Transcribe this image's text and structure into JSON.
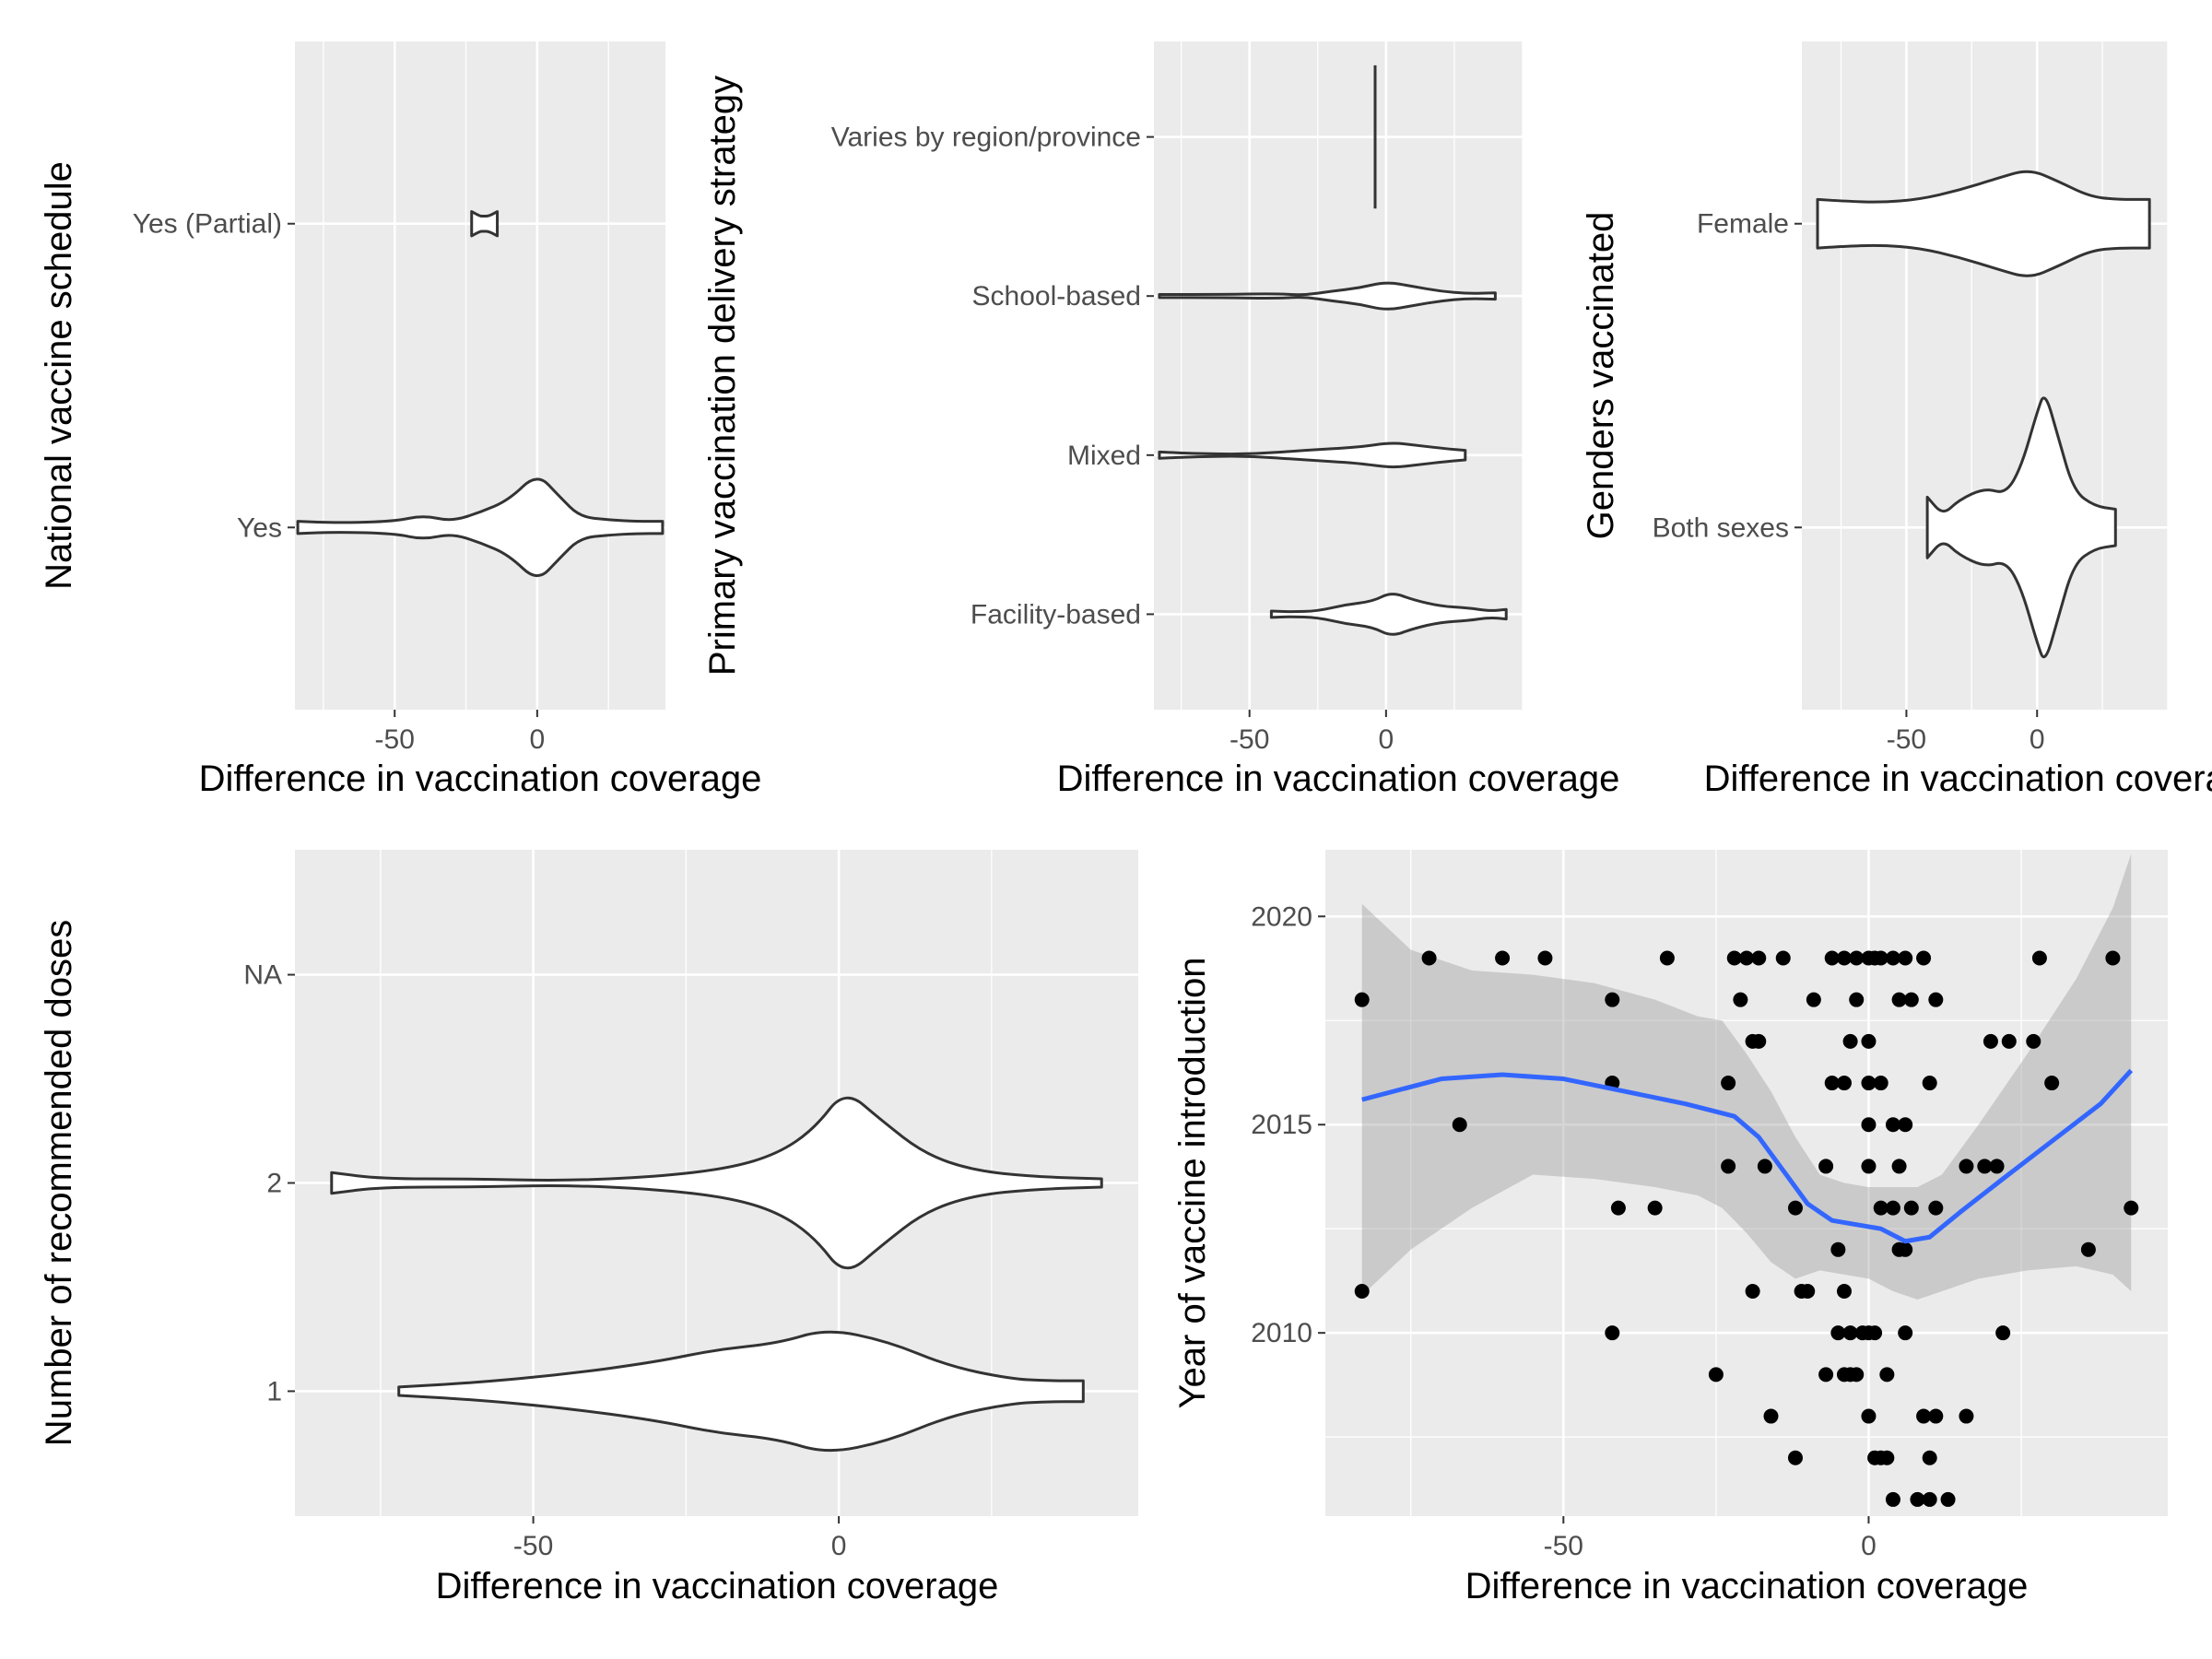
{
  "colors": {
    "panel": "#ebebeb",
    "grid_major": "#ffffff",
    "violin_fill": "#ffffff",
    "violin_line": "#333333",
    "point": "#000000",
    "smooth_line": "#3366ff",
    "ribbon": "#999999"
  },
  "chart_data": [
    {
      "type": "violin",
      "xlabel": "Difference in vaccination coverage",
      "ylabel": "National vaccine schedule",
      "xlim": [
        -85,
        45
      ],
      "x_ticks": [
        -50,
        0
      ],
      "categories": [
        "Yes",
        "Yes (Partial)"
      ],
      "violins": [
        {
          "category": "Yes",
          "min": -84,
          "max": 44,
          "max_half_width": 0.18,
          "profile": [
            [
              -84,
              0.02
            ],
            [
              -70,
              0.015
            ],
            [
              -50,
              0.02
            ],
            [
              -40,
              0.04
            ],
            [
              -30,
              0.02
            ],
            [
              -20,
              0.05
            ],
            [
              -10,
              0.09
            ],
            [
              0,
              0.18
            ],
            [
              8,
              0.1
            ],
            [
              15,
              0.035
            ],
            [
              25,
              0.025
            ],
            [
              35,
              0.02
            ],
            [
              44,
              0.02
            ]
          ]
        },
        {
          "category": "Yes (Partial)",
          "min": -23,
          "max": -14,
          "max_half_width": 0.04,
          "profile": [
            [
              -23,
              0.04
            ],
            [
              -20,
              0.025
            ],
            [
              -19,
              0.025
            ],
            [
              -17,
              0.025
            ],
            [
              -14,
              0.04
            ]
          ]
        }
      ]
    },
    {
      "type": "violin",
      "xlabel": "Difference in vaccination coverage",
      "ylabel": "Primary vaccination delivery strategy",
      "xlim": [
        -85,
        50
      ],
      "x_ticks": [
        -50,
        0
      ],
      "categories": [
        "Facility-based",
        "Mixed",
        "School-based",
        "Varies by region/province"
      ],
      "violins": [
        {
          "category": "Facility-based",
          "min": -42,
          "max": 44,
          "max_half_width": 0.14,
          "profile": [
            [
              -42,
              0.02
            ],
            [
              -35,
              0.015
            ],
            [
              -25,
              0.02
            ],
            [
              -15,
              0.06
            ],
            [
              -5,
              0.08
            ],
            [
              2,
              0.14
            ],
            [
              10,
              0.09
            ],
            [
              20,
              0.05
            ],
            [
              30,
              0.04
            ],
            [
              38,
              0.02
            ],
            [
              44,
              0.03
            ]
          ]
        },
        {
          "category": "Mixed",
          "min": -83,
          "max": 29,
          "max_half_width": 0.08,
          "profile": [
            [
              -83,
              0.02
            ],
            [
              -70,
              0.01
            ],
            [
              -50,
              0.005
            ],
            [
              -30,
              0.03
            ],
            [
              -10,
              0.05
            ],
            [
              2,
              0.08
            ],
            [
              12,
              0.06
            ],
            [
              22,
              0.04
            ],
            [
              29,
              0.03
            ]
          ]
        },
        {
          "category": "School-based",
          "min": -83,
          "max": 40,
          "max_half_width": 0.09,
          "profile": [
            [
              -83,
              0.01
            ],
            [
              -60,
              0.01
            ],
            [
              -40,
              0.015
            ],
            [
              -30,
              0.005
            ],
            [
              -20,
              0.03
            ],
            [
              -10,
              0.05
            ],
            [
              0,
              0.09
            ],
            [
              10,
              0.06
            ],
            [
              20,
              0.03
            ],
            [
              30,
              0.015
            ],
            [
              40,
              0.02
            ]
          ]
        },
        {
          "category": "Varies by region/province",
          "min": -4,
          "max": -4,
          "max_half_width": 0.45,
          "profile": []
        }
      ]
    },
    {
      "type": "violin",
      "xlabel": "Difference in vaccination coverage",
      "ylabel": "Genders vaccinated",
      "xlim": [
        -90,
        50
      ],
      "x_ticks": [
        -50,
        0
      ],
      "categories": [
        "Both sexes",
        "Female"
      ],
      "violins": [
        {
          "category": "Both sexes",
          "min": -42,
          "max": 30,
          "max_half_width": 0.45,
          "profile": [
            [
              -42,
              0.1
            ],
            [
              -36,
              0.04
            ],
            [
              -30,
              0.09
            ],
            [
              -20,
              0.13
            ],
            [
              -12,
              0.11
            ],
            [
              -6,
              0.2
            ],
            [
              0,
              0.38
            ],
            [
              3,
              0.45
            ],
            [
              8,
              0.3
            ],
            [
              14,
              0.12
            ],
            [
              22,
              0.07
            ],
            [
              30,
              0.06
            ]
          ]
        },
        {
          "category": "Female",
          "min": -84,
          "max": 43,
          "max_half_width": 0.18,
          "profile": [
            [
              -84,
              0.08
            ],
            [
              -75,
              0.075
            ],
            [
              -60,
              0.07
            ],
            [
              -45,
              0.08
            ],
            [
              -30,
              0.11
            ],
            [
              -15,
              0.15
            ],
            [
              -3,
              0.18
            ],
            [
              8,
              0.14
            ],
            [
              20,
              0.09
            ],
            [
              30,
              0.08
            ],
            [
              43,
              0.08
            ]
          ]
        }
      ]
    },
    {
      "type": "violin",
      "xlabel": "Difference in vaccination coverage",
      "ylabel": "Number of recommended doses",
      "xlim": [
        -89,
        49
      ],
      "x_ticks": [
        -50,
        0
      ],
      "categories": [
        "1",
        "2",
        "NA"
      ],
      "violins": [
        {
          "category": "1",
          "min": -72,
          "max": 40,
          "max_half_width": 0.3,
          "profile": [
            [
              -72,
              0.02
            ],
            [
              -60,
              0.04
            ],
            [
              -45,
              0.08
            ],
            [
              -30,
              0.14
            ],
            [
              -20,
              0.2
            ],
            [
              -10,
              0.23
            ],
            [
              -2,
              0.3
            ],
            [
              8,
              0.24
            ],
            [
              18,
              0.12
            ],
            [
              28,
              0.06
            ],
            [
              34,
              0.05
            ],
            [
              40,
              0.05
            ]
          ]
        },
        {
          "category": "2",
          "min": -83,
          "max": 43,
          "max_half_width": 0.45,
          "profile": [
            [
              -83,
              0.05
            ],
            [
              -75,
              0.02
            ],
            [
              -60,
              0.02
            ],
            [
              -45,
              0.01
            ],
            [
              -30,
              0.03
            ],
            [
              -18,
              0.07
            ],
            [
              -10,
              0.14
            ],
            [
              -4,
              0.26
            ],
            [
              1,
              0.45
            ],
            [
              7,
              0.3
            ],
            [
              14,
              0.14
            ],
            [
              22,
              0.06
            ],
            [
              32,
              0.03
            ],
            [
              43,
              0.02
            ]
          ]
        }
      ]
    },
    {
      "type": "scatter",
      "xlabel": "Difference in vaccination coverage",
      "ylabel": "Year of vaccine introduction",
      "xlim": [
        -89,
        49
      ],
      "ylim": [
        2005.6,
        2021.6
      ],
      "x_ticks": [
        -50,
        0
      ],
      "y_ticks": [
        2010,
        2015,
        2020
      ],
      "points": [
        [
          -83,
          2011
        ],
        [
          -83,
          2018
        ],
        [
          -72,
          2019
        ],
        [
          -67,
          2015
        ],
        [
          -60,
          2019
        ],
        [
          -53,
          2019
        ],
        [
          -42,
          2016
        ],
        [
          -42,
          2018
        ],
        [
          -42,
          2010
        ],
        [
          -41,
          2013
        ],
        [
          -35,
          2013
        ],
        [
          -33,
          2019
        ],
        [
          -25,
          2009
        ],
        [
          -23,
          2016
        ],
        [
          -23,
          2014
        ],
        [
          -22,
          2019
        ],
        [
          -21,
          2018
        ],
        [
          -20,
          2019
        ],
        [
          -19,
          2017
        ],
        [
          -19,
          2011
        ],
        [
          -18,
          2019
        ],
        [
          -18,
          2017
        ],
        [
          -17,
          2014
        ],
        [
          -16,
          2008
        ],
        [
          -14,
          2019
        ],
        [
          -12,
          2013
        ],
        [
          -12,
          2007
        ],
        [
          -11,
          2011
        ],
        [
          -10,
          2011
        ],
        [
          -9,
          2018
        ],
        [
          -7,
          2009
        ],
        [
          -7,
          2014
        ],
        [
          -6,
          2019
        ],
        [
          -6,
          2016
        ],
        [
          -5,
          2012
        ],
        [
          -5,
          2010
        ],
        [
          -4,
          2019
        ],
        [
          -4,
          2016
        ],
        [
          -4,
          2011
        ],
        [
          -4,
          2009
        ],
        [
          -3,
          2017
        ],
        [
          -3,
          2010
        ],
        [
          -3,
          2009
        ],
        [
          -2,
          2019
        ],
        [
          -2,
          2018
        ],
        [
          -2,
          2009
        ],
        [
          -1,
          2010
        ],
        [
          0,
          2016
        ],
        [
          0,
          2014
        ],
        [
          0,
          2015
        ],
        [
          0,
          2017
        ],
        [
          0,
          2010
        ],
        [
          0,
          2008
        ],
        [
          0,
          2019
        ],
        [
          1,
          2019
        ],
        [
          1,
          2010
        ],
        [
          1,
          2007
        ],
        [
          2,
          2019
        ],
        [
          2,
          2016
        ],
        [
          2,
          2007
        ],
        [
          2,
          2013
        ],
        [
          3,
          2009
        ],
        [
          3,
          2007
        ],
        [
          4,
          2015
        ],
        [
          4,
          2019
        ],
        [
          4,
          2013
        ],
        [
          4,
          2006
        ],
        [
          5,
          2018
        ],
        [
          5,
          2012
        ],
        [
          5,
          2014
        ],
        [
          6,
          2019
        ],
        [
          6,
          2015
        ],
        [
          6,
          2010
        ],
        [
          6,
          2012
        ],
        [
          7,
          2018
        ],
        [
          7,
          2013
        ],
        [
          8,
          2006
        ],
        [
          9,
          2019
        ],
        [
          9,
          2008
        ],
        [
          10,
          2016
        ],
        [
          10,
          2007
        ],
        [
          10,
          2006
        ],
        [
          11,
          2018
        ],
        [
          11,
          2013
        ],
        [
          11,
          2008
        ],
        [
          13,
          2006
        ],
        [
          16,
          2014
        ],
        [
          16,
          2008
        ],
        [
          19,
          2014
        ],
        [
          20,
          2017
        ],
        [
          21,
          2014
        ],
        [
          22,
          2010
        ],
        [
          23,
          2017
        ],
        [
          27,
          2017
        ],
        [
          28,
          2019
        ],
        [
          30,
          2016
        ],
        [
          36,
          2012
        ],
        [
          40,
          2019
        ],
        [
          43,
          2013
        ]
      ],
      "smooth": [
        [
          -83,
          2015.6
        ],
        [
          -70,
          2016.1
        ],
        [
          -60,
          2016.2
        ],
        [
          -50,
          2016.1
        ],
        [
          -40,
          2015.8
        ],
        [
          -30,
          2015.5
        ],
        [
          -22,
          2015.2
        ],
        [
          -18,
          2014.7
        ],
        [
          -14,
          2013.9
        ],
        [
          -10,
          2013.1
        ],
        [
          -6,
          2012.7
        ],
        [
          -2,
          2012.6
        ],
        [
          2,
          2012.5
        ],
        [
          6,
          2012.2
        ],
        [
          10,
          2012.3
        ],
        [
          15,
          2012.9
        ],
        [
          22,
          2013.7
        ],
        [
          30,
          2014.6
        ],
        [
          38,
          2015.5
        ],
        [
          43,
          2016.3
        ]
      ],
      "ribbon_upper": [
        [
          -83,
          2020.3
        ],
        [
          -75,
          2019.2
        ],
        [
          -65,
          2018.7
        ],
        [
          -55,
          2018.6
        ],
        [
          -45,
          2018.4
        ],
        [
          -35,
          2018.0
        ],
        [
          -28,
          2017.6
        ],
        [
          -24,
          2017.5
        ],
        [
          -20,
          2016.7
        ],
        [
          -16,
          2015.8
        ],
        [
          -12,
          2014.7
        ],
        [
          -8,
          2013.8
        ],
        [
          -4,
          2013.6
        ],
        [
          0,
          2013.5
        ],
        [
          4,
          2013.5
        ],
        [
          8,
          2013.5
        ],
        [
          12,
          2013.8
        ],
        [
          18,
          2015.0
        ],
        [
          26,
          2016.7
        ],
        [
          34,
          2018.5
        ],
        [
          40,
          2020.2
        ],
        [
          43,
          2021.5
        ]
      ],
      "ribbon_lower": [
        [
          -83,
          2010.9
        ],
        [
          -75,
          2012.0
        ],
        [
          -65,
          2013.0
        ],
        [
          -55,
          2013.8
        ],
        [
          -45,
          2013.7
        ],
        [
          -35,
          2013.5
        ],
        [
          -28,
          2013.3
        ],
        [
          -24,
          2013.0
        ],
        [
          -20,
          2012.4
        ],
        [
          -16,
          2011.7
        ],
        [
          -12,
          2011.3
        ],
        [
          -8,
          2011.5
        ],
        [
          -4,
          2011.4
        ],
        [
          0,
          2011.3
        ],
        [
          4,
          2011.0
        ],
        [
          8,
          2010.8
        ],
        [
          12,
          2011.0
        ],
        [
          18,
          2011.3
        ],
        [
          26,
          2011.5
        ],
        [
          34,
          2011.6
        ],
        [
          40,
          2011.4
        ],
        [
          43,
          2011.0
        ]
      ]
    }
  ]
}
